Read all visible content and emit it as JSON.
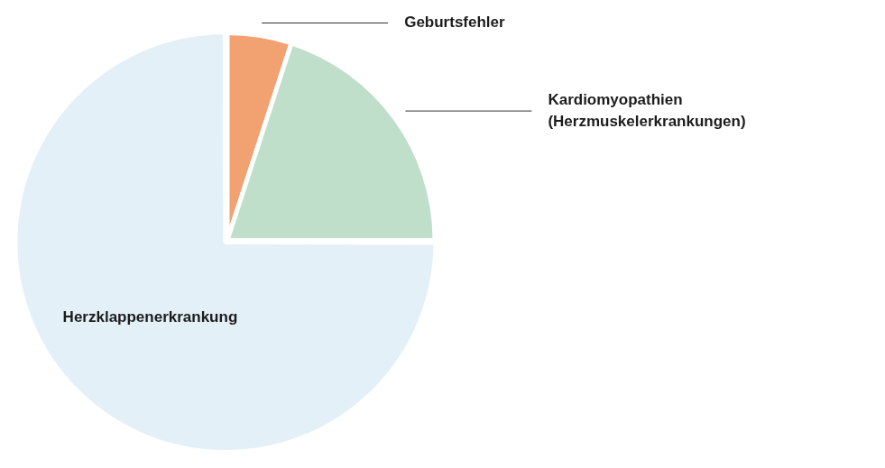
{
  "chart_data": {
    "type": "pie",
    "categories": [
      "Geburtsfehler",
      "Kardiomyopathien (Herzmuskelerkrankungen)",
      "Herzklappenerkrankung"
    ],
    "values": [
      5,
      20,
      75
    ],
    "colors": [
      "#f2a171",
      "#c0dfca",
      "#e3f0f8"
    ]
  }
}
